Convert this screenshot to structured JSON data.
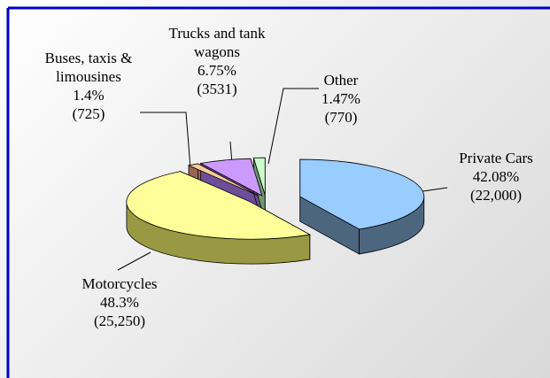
{
  "chart_data": {
    "type": "pie3d",
    "categories": [
      "Private Cars",
      "Motorcycles",
      "Buses, taxis & limousines",
      "Trucks and tank wagons",
      "Other"
    ],
    "values": [
      42.08,
      48.3,
      1.4,
      6.75,
      1.47
    ],
    "value_labels": [
      "42.08%",
      "48.3%",
      "1.4%",
      "6.75%",
      "1.47%"
    ],
    "counts": [
      22000,
      25250,
      725,
      3531,
      770
    ],
    "count_labels": [
      "(22,000)",
      "(25,250)",
      "(725)",
      "(3531)",
      "(770)"
    ],
    "colors": [
      "#99ccff",
      "#ffff99",
      "#ffcc99",
      "#cc99ff",
      "#ccffcc"
    ],
    "side_colors": [
      "#4d6680",
      "#999944",
      "#996655",
      "#6e4d99",
      "#6e996e"
    ]
  }
}
